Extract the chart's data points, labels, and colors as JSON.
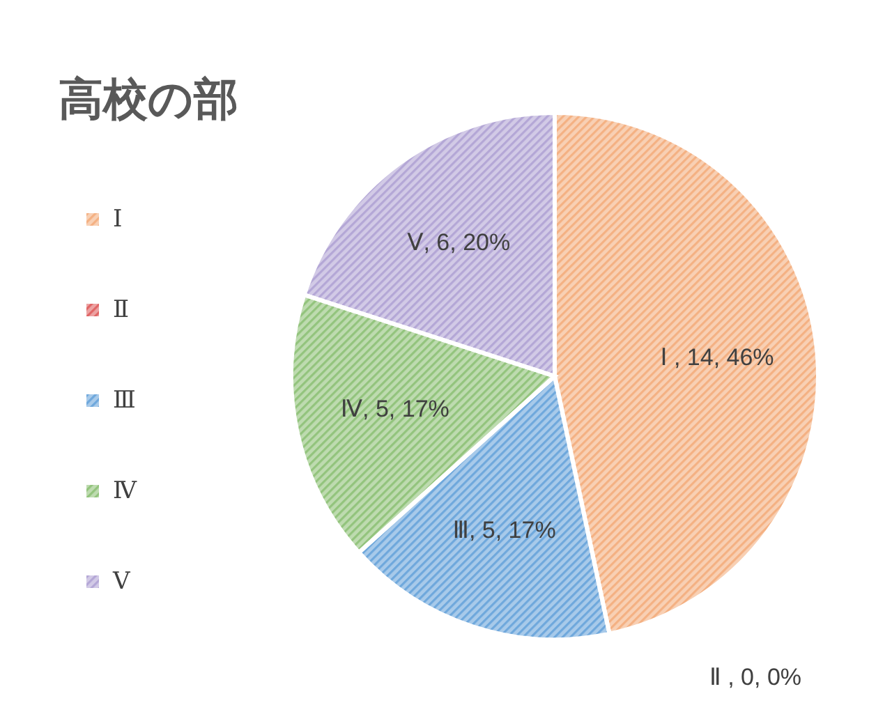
{
  "chart_data": {
    "type": "pie",
    "title": "高校の部",
    "categories": [
      "Ⅰ",
      "Ⅱ",
      "Ⅲ",
      "Ⅳ",
      "Ⅴ"
    ],
    "values": [
      14,
      0,
      5,
      5,
      6
    ],
    "colors": [
      "#f4b183",
      "#e06666",
      "#6fa8dc",
      "#93c47d",
      "#b4a7d6"
    ],
    "value_labels": [
      "Ⅰ , 14, 46%",
      "Ⅱ , 0, 0%",
      "Ⅲ, 5, 17%",
      "Ⅳ, 5, 17%",
      "Ⅴ, 6, 20%"
    ],
    "legend": "left"
  }
}
